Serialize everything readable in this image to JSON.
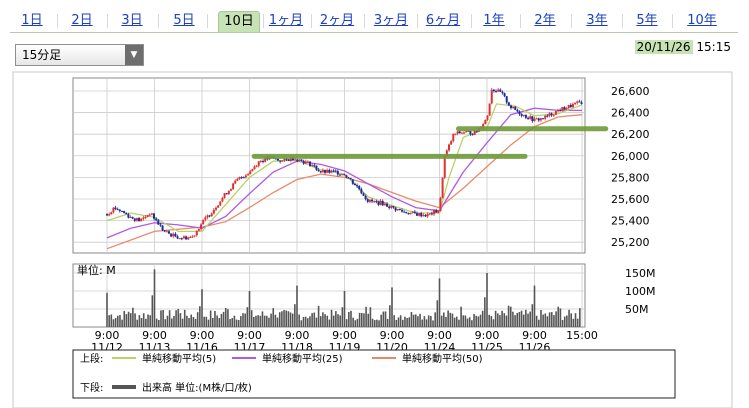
{
  "tabs": [
    {
      "label": "1日",
      "active": false
    },
    {
      "label": "2日",
      "active": false
    },
    {
      "label": "3日",
      "active": false
    },
    {
      "label": "5日",
      "active": false
    },
    {
      "label": "10日",
      "active": true
    },
    {
      "label": "1ヶ月",
      "active": false
    },
    {
      "label": "2ヶ月",
      "active": false
    },
    {
      "label": "3ヶ月",
      "active": false
    },
    {
      "label": "6ヶ月",
      "active": false
    },
    {
      "label": "1年",
      "active": false
    },
    {
      "label": "2年",
      "active": false
    },
    {
      "label": "3年",
      "active": false
    },
    {
      "label": "5年",
      "active": false
    },
    {
      "label": "10年",
      "active": false
    }
  ],
  "interval_select": {
    "value": "15分足"
  },
  "timestamp": {
    "date": "20/11/26",
    "time": "15:15"
  },
  "colors": {
    "up_candle": "#e03030",
    "down_candle": "#1a2a9a",
    "ma5": "#b8d36a",
    "ma25": "#b05ae0",
    "ma50": "#e88a6a",
    "volume": "#555555",
    "highlight": "#6f9a3a",
    "grid": "#cccccc"
  },
  "chart_data": {
    "type": "line",
    "price_axis": {
      "ticks": [
        "26,600",
        "26,400",
        "26,200",
        "26,000",
        "25,800",
        "25,600",
        "25,400",
        "25,200"
      ],
      "values": [
        26600,
        26400,
        26200,
        26000,
        25800,
        25600,
        25400,
        25200
      ],
      "ylim": [
        25100,
        26720
      ]
    },
    "volume_axis": {
      "label": "単位: M",
      "ticks": [
        "150M",
        "100M",
        "50M"
      ],
      "values": [
        150,
        100,
        50
      ],
      "ylim": [
        0,
        175
      ]
    },
    "x_labels": [
      {
        "time": "9:00",
        "date": "11/12"
      },
      {
        "time": "9:00",
        "date": "11/13"
      },
      {
        "time": "9:00",
        "date": "11/16"
      },
      {
        "time": "9:00",
        "date": "11/17"
      },
      {
        "time": "9:00",
        "date": "11/18"
      },
      {
        "time": "9:00",
        "date": "11/19"
      },
      {
        "time": "9:00",
        "date": "11/20"
      },
      {
        "time": "9:00",
        "date": "11/24"
      },
      {
        "time": "9:00",
        "date": "11/25"
      },
      {
        "time": "9:00",
        "date": "11/26"
      },
      {
        "time": "15:00",
        "date": ""
      }
    ],
    "close_path": [
      [
        0,
        25460
      ],
      [
        0.15,
        25520
      ],
      [
        0.3,
        25490
      ],
      [
        0.5,
        25430
      ],
      [
        0.7,
        25400
      ],
      [
        0.9,
        25470
      ],
      [
        1.0,
        25420
      ],
      [
        1.2,
        25300
      ],
      [
        1.4,
        25260
      ],
      [
        1.6,
        25240
      ],
      [
        1.8,
        25250
      ],
      [
        2.0,
        25380
      ],
      [
        2.2,
        25480
      ],
      [
        2.5,
        25650
      ],
      [
        2.75,
        25780
      ],
      [
        3.0,
        25850
      ],
      [
        3.2,
        25950
      ],
      [
        3.45,
        25980
      ],
      [
        3.7,
        25950
      ],
      [
        3.9,
        25980
      ],
      [
        4.0,
        25970
      ],
      [
        4.3,
        25920
      ],
      [
        4.5,
        25850
      ],
      [
        4.8,
        25850
      ],
      [
        5.0,
        25830
      ],
      [
        5.3,
        25700
      ],
      [
        5.5,
        25580
      ],
      [
        5.8,
        25560
      ],
      [
        6.0,
        25520
      ],
      [
        6.25,
        25480
      ],
      [
        6.5,
        25460
      ],
      [
        6.75,
        25450
      ],
      [
        7.0,
        25500
      ],
      [
        7.1,
        25980
      ],
      [
        7.3,
        26200
      ],
      [
        7.5,
        26220
      ],
      [
        7.75,
        26210
      ],
      [
        8.0,
        26350
      ],
      [
        8.1,
        26620
      ],
      [
        8.3,
        26580
      ],
      [
        8.5,
        26450
      ],
      [
        8.75,
        26380
      ],
      [
        9.0,
        26330
      ],
      [
        9.2,
        26350
      ],
      [
        9.5,
        26420
      ],
      [
        9.75,
        26460
      ],
      [
        10.0,
        26500
      ]
    ],
    "ma5_path": [
      [
        0,
        25400
      ],
      [
        0.5,
        25470
      ],
      [
        1.0,
        25430
      ],
      [
        1.5,
        25300
      ],
      [
        2.0,
        25300
      ],
      [
        2.5,
        25550
      ],
      [
        3.0,
        25800
      ],
      [
        3.5,
        25950
      ],
      [
        4.0,
        25960
      ],
      [
        4.5,
        25870
      ],
      [
        5.0,
        25830
      ],
      [
        5.5,
        25620
      ],
      [
        6.0,
        25540
      ],
      [
        6.5,
        25470
      ],
      [
        7.0,
        25470
      ],
      [
        7.2,
        25800
      ],
      [
        7.5,
        26170
      ],
      [
        8.0,
        26260
      ],
      [
        8.2,
        26480
      ],
      [
        8.6,
        26460
      ],
      [
        9.0,
        26370
      ],
      [
        9.5,
        26390
      ],
      [
        10.0,
        26470
      ]
    ],
    "ma25_path": [
      [
        0,
        25240
      ],
      [
        0.5,
        25330
      ],
      [
        1.0,
        25380
      ],
      [
        1.5,
        25360
      ],
      [
        2.0,
        25330
      ],
      [
        2.5,
        25440
      ],
      [
        3.0,
        25650
      ],
      [
        3.5,
        25850
      ],
      [
        4.0,
        25950
      ],
      [
        4.5,
        25920
      ],
      [
        5.0,
        25860
      ],
      [
        5.5,
        25740
      ],
      [
        6.0,
        25620
      ],
      [
        6.5,
        25520
      ],
      [
        7.0,
        25490
      ],
      [
        7.5,
        25850
      ],
      [
        8.0,
        26120
      ],
      [
        8.5,
        26380
      ],
      [
        9.0,
        26440
      ],
      [
        9.5,
        26420
      ],
      [
        10.0,
        26420
      ]
    ],
    "ma50_path": [
      [
        0,
        25140
      ],
      [
        1.0,
        25300
      ],
      [
        2.0,
        25340
      ],
      [
        2.5,
        25390
      ],
      [
        3.0,
        25520
      ],
      [
        3.5,
        25660
      ],
      [
        4.0,
        25780
      ],
      [
        4.5,
        25830
      ],
      [
        5.0,
        25800
      ],
      [
        5.5,
        25740
      ],
      [
        6.0,
        25660
      ],
      [
        6.5,
        25580
      ],
      [
        7.0,
        25520
      ],
      [
        7.5,
        25700
      ],
      [
        8.0,
        25900
      ],
      [
        8.5,
        26100
      ],
      [
        9.0,
        26270
      ],
      [
        9.5,
        26360
      ],
      [
        10.0,
        26380
      ]
    ],
    "volume_spikes": [
      95,
      160,
      105,
      100,
      115,
      100,
      110,
      135,
      150,
      115,
      95
    ],
    "highlights": [
      {
        "label": "resistance-26000",
        "from_x": 3.1,
        "to_x": 8.8,
        "y": 25995
      },
      {
        "label": "resistance-26250",
        "from_x": 7.4,
        "to_x": 10.5,
        "y": 26250
      }
    ],
    "legend": {
      "upper_label": "上段:",
      "lower_label": "下段:",
      "series": [
        {
          "name": "単純移動平均(5)",
          "color_key": "ma5"
        },
        {
          "name": "単純移動平均(25)",
          "color_key": "ma25"
        },
        {
          "name": "単純移動平均(50)",
          "color_key": "ma50"
        }
      ],
      "volume": {
        "name": "出来高 単位:(M株/口/枚)"
      }
    }
  }
}
